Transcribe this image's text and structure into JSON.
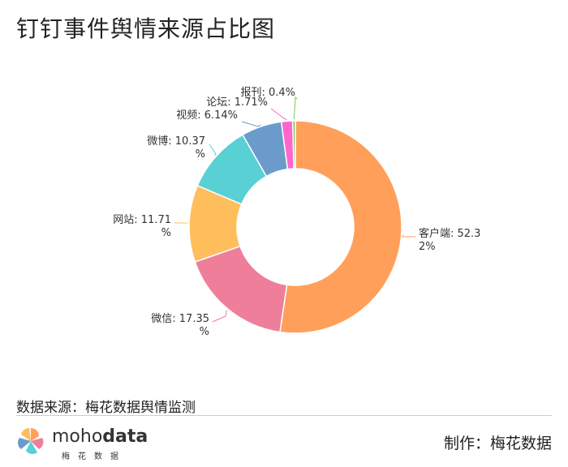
{
  "title": "钉钉事件舆情来源占比图",
  "source_text": "数据来源：梅花数据舆情监测",
  "maker_text": "制作：梅花数据",
  "logo": {
    "word_light": "moho",
    "word_bold": "data",
    "subtitle": "梅花数据"
  },
  "chart_data": {
    "type": "pie",
    "donut": true,
    "title": "钉钉事件舆情来源占比图",
    "slices": [
      {
        "label": "客户端",
        "value": 52.32,
        "text_lines": [
          "客户端: 52.3",
          "2%"
        ],
        "color": "#FF9F5A"
      },
      {
        "label": "微信",
        "value": 17.35,
        "text_lines": [
          "微信: 17.35",
          "%"
        ],
        "color": "#EF7E9B"
      },
      {
        "label": "网站",
        "value": 11.71,
        "text_lines": [
          "网站: 11.71",
          "%"
        ],
        "color": "#FFBE5C"
      },
      {
        "label": "微博",
        "value": 10.37,
        "text_lines": [
          "微博: 10.37",
          "%"
        ],
        "color": "#58D0D4"
      },
      {
        "label": "视频",
        "value": 6.14,
        "text_lines": [
          "视频: 6.14%"
        ],
        "color": "#6B9BCB"
      },
      {
        "label": "论坛",
        "value": 1.71,
        "text_lines": [
          "论坛: 1.71%"
        ],
        "color": "#FF66CC"
      },
      {
        "label": "报刊",
        "value": 0.4,
        "text_lines": [
          "报刊: 0.4%"
        ],
        "color": "#7CC65A"
      }
    ]
  }
}
